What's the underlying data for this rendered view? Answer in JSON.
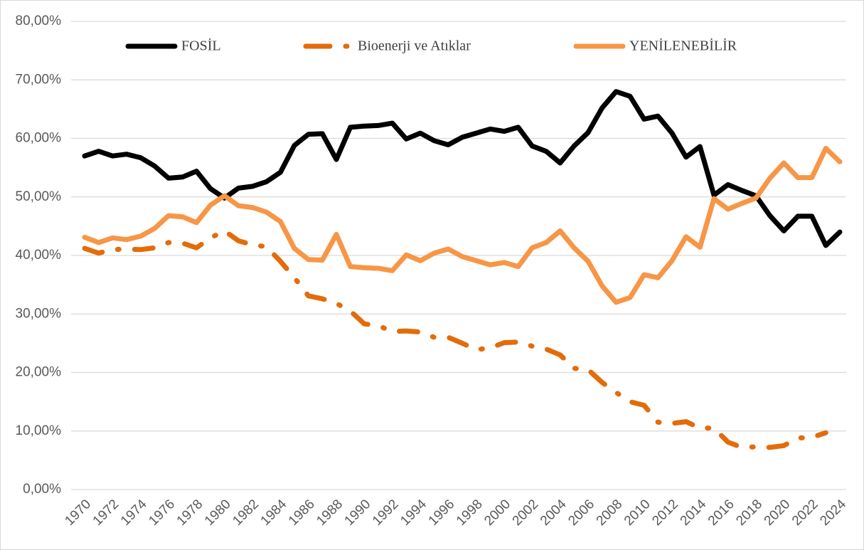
{
  "chart_data": {
    "type": "line",
    "categories": [
      "1970",
      null,
      "1972",
      null,
      "1974",
      null,
      "1976",
      null,
      "1978",
      null,
      "1980",
      null,
      "1982",
      null,
      "1984",
      null,
      "1986",
      null,
      "1988",
      null,
      "1990",
      null,
      "1992",
      null,
      "1994",
      null,
      "1996",
      null,
      "1998",
      null,
      "2000",
      null,
      "2002",
      null,
      "2004",
      null,
      "2006",
      null,
      "2008",
      null,
      "2010",
      null,
      "2012",
      null,
      "2014",
      null,
      "2016",
      null,
      "2018",
      null,
      "2020",
      null,
      "2022",
      null,
      "2024"
    ],
    "series": [
      {
        "name": "FOSİL",
        "color": "#000000",
        "dash": "solid",
        "values": [
          57.0,
          57.8,
          57.0,
          57.3,
          56.7,
          55.3,
          53.2,
          53.4,
          54.4,
          51.4,
          49.8,
          51.5,
          51.8,
          52.6,
          54.2,
          58.8,
          60.7,
          60.8,
          56.4,
          61.9,
          62.1,
          62.2,
          62.6,
          59.9,
          60.9,
          59.6,
          58.9,
          60.2,
          60.9,
          61.6,
          61.2,
          61.9,
          58.7,
          57.8,
          55.8,
          58.7,
          61.0,
          65.2,
          68.0,
          67.2,
          63.3,
          63.8,
          60.9,
          56.8,
          58.6,
          50.3,
          52.1,
          51.1,
          50.2,
          46.8,
          44.2,
          46.7,
          46.7,
          41.7,
          44.0
        ]
      },
      {
        "name": "Bioenerji ve Atıklar",
        "color": "#e36c0a",
        "dash": "dashdot",
        "values": [
          41.2,
          40.4,
          41.0,
          41.1,
          41.0,
          41.3,
          42.2,
          42.1,
          41.3,
          43.0,
          44.2,
          42.5,
          41.8,
          41.5,
          39.0,
          36.2,
          33.1,
          32.6,
          31.8,
          30.5,
          28.3,
          28.0,
          27.0,
          27.1,
          26.9,
          26.0,
          26.0,
          25.0,
          23.9,
          24.2,
          25.1,
          25.2,
          24.5,
          24.0,
          23.0,
          20.7,
          20.5,
          18.3,
          16.6,
          15.0,
          14.4,
          11.5,
          11.3,
          11.6,
          10.5,
          10.5,
          8.1,
          7.2,
          7.3,
          7.2,
          7.5,
          8.8,
          8.9,
          9.7,
          null
        ]
      },
      {
        "name": "YENİLENEBİLİR",
        "color": "#f79646",
        "dash": "solid",
        "values": [
          43.1,
          42.2,
          43.0,
          42.7,
          43.3,
          44.6,
          46.8,
          46.6,
          45.6,
          48.6,
          50.2,
          48.5,
          48.2,
          47.4,
          45.8,
          41.2,
          39.3,
          39.2,
          43.6,
          38.1,
          37.9,
          37.8,
          37.4,
          40.1,
          39.1,
          40.4,
          41.1,
          39.8,
          39.1,
          38.4,
          38.8,
          38.1,
          41.3,
          42.2,
          44.2,
          41.3,
          39.0,
          34.8,
          32.0,
          32.8,
          36.7,
          36.2,
          39.1,
          43.2,
          41.4,
          49.7,
          47.9,
          48.9,
          49.8,
          53.2,
          55.8,
          53.3,
          53.3,
          58.3,
          56.0
        ]
      }
    ],
    "ylim": [
      0,
      80
    ],
    "yticks": [
      {
        "value": 0,
        "label": "0,00%"
      },
      {
        "value": 10,
        "label": "10,00%"
      },
      {
        "value": 20,
        "label": "20,00%"
      },
      {
        "value": 30,
        "label": "30,00%"
      },
      {
        "value": 40,
        "label": "40,00%"
      },
      {
        "value": 50,
        "label": "50,00%"
      },
      {
        "value": 60,
        "label": "60,00%"
      },
      {
        "value": 70,
        "label": "70,00%"
      },
      {
        "value": 80,
        "label": "80,00%"
      }
    ],
    "grid": true,
    "legend": "top"
  }
}
